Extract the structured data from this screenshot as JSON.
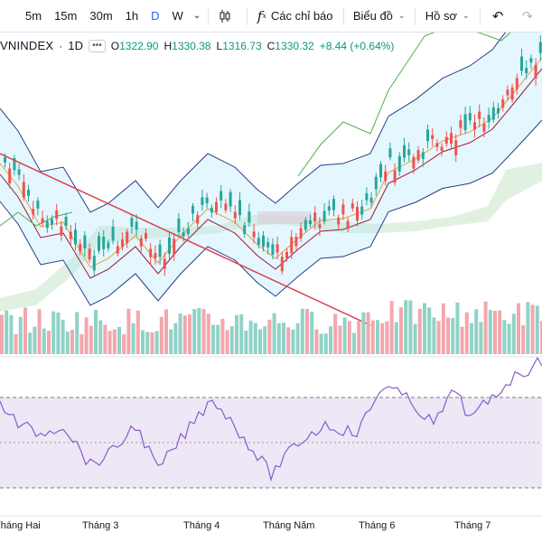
{
  "toolbar": {
    "timeframes": [
      "5m",
      "15m",
      "30m",
      "1h",
      "D",
      "W"
    ],
    "active_timeframe": "D",
    "timeframe_dropdown_icon": "chevron-down-icon",
    "candle_type_icon": "candlestick-icon",
    "indicators_label": "Các chỉ báo",
    "indicators_icon": "function-icon",
    "layout_label": "Biểu đồ",
    "profile_label": "Hồ sơ",
    "undo_icon": "undo-icon",
    "redo_icon": "redo-icon"
  },
  "legend": {
    "symbol": "VNINDEX",
    "interval": "1D",
    "open_label": "O",
    "open": "1322.90",
    "high_label": "H",
    "high": "1330.38",
    "low_label": "L",
    "low": "1316.73",
    "close_label": "C",
    "close": "1330.32",
    "change": "+8.44 (+0.64%)"
  },
  "time_axis": {
    "labels": [
      "Tháng Hai",
      "Tháng 3",
      "Tháng 4",
      "Tháng Năm",
      "Tháng 6",
      "Tháng 7"
    ]
  },
  "colors": {
    "up": "#26a69a",
    "down": "#ef5350",
    "volume_up": "#8fd3c7",
    "volume_down": "#f4a6ad",
    "bollinger": "#2a3c86",
    "trendline": "#d9404f",
    "rsi": "#8a5cc8",
    "rsi_band": "#ede7f6",
    "lagging": "#4caf50",
    "kijun": "#9c1a2c",
    "tenkan": "#e8a23a",
    "cloud_up": "#c8e6c9",
    "cloud_down": "#f8c6cc",
    "accent": "#2962ff"
  }
}
